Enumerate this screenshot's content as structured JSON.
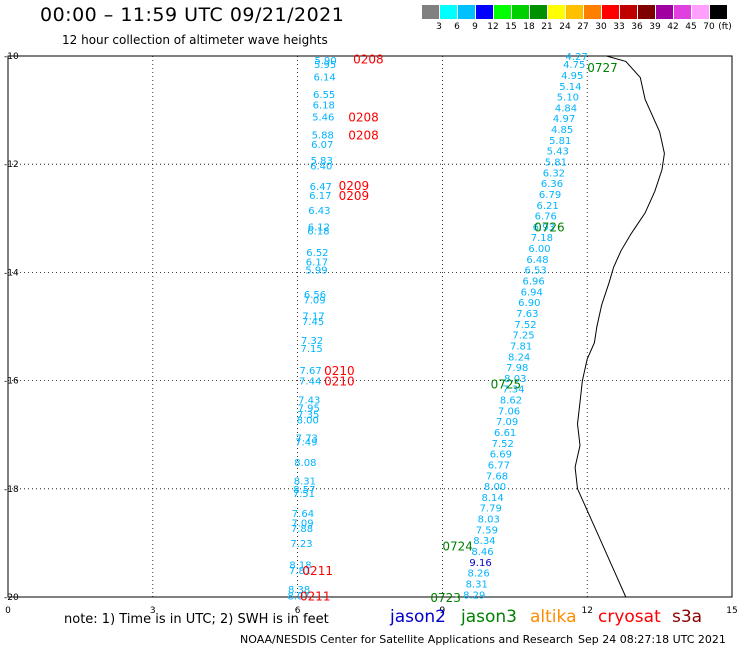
{
  "header": {
    "title": "00:00 – 11:59 UTC 09/21/2021",
    "subtitle": "12 hour collection of altimeter wave heights"
  },
  "legend": {
    "unit": "(ft)",
    "bins": [
      {
        "label": "3",
        "color": "#808080"
      },
      {
        "label": "6",
        "color": "#00ffff"
      },
      {
        "label": "9",
        "color": "#00c0ff"
      },
      {
        "label": "12",
        "color": "#0000ff"
      },
      {
        "label": "15",
        "color": "#00ff00"
      },
      {
        "label": "18",
        "color": "#00d000"
      },
      {
        "label": "21",
        "color": "#009000"
      },
      {
        "label": "24",
        "color": "#ffff00"
      },
      {
        "label": "27",
        "color": "#ffc000"
      },
      {
        "label": "30",
        "color": "#ff8000"
      },
      {
        "label": "33",
        "color": "#ff0000"
      },
      {
        "label": "36",
        "color": "#c00000"
      },
      {
        "label": "39",
        "color": "#800000"
      },
      {
        "label": "42",
        "color": "#a000a0"
      },
      {
        "label": "45",
        "color": "#e040e0"
      },
      {
        "label": "70",
        "color": "#ffa0ff"
      },
      {
        "label": "",
        "color": "#000000"
      }
    ]
  },
  "chart_data": {
    "type": "scatter",
    "x_ticks": [
      "0",
      "3",
      "6",
      "9",
      "12",
      "15"
    ],
    "y_ticks": [
      "-10",
      "-12",
      "-14",
      "-16",
      "-18",
      "-20"
    ],
    "xlim": [
      0,
      15
    ],
    "ylim": [
      -20,
      -10
    ],
    "grid": true,
    "colors": {
      "wave_label": "#00b4ff",
      "wave_label_high": "#0000cc",
      "cryosat": "#ff0000",
      "jason3": "#008000"
    },
    "tracks": [
      {
        "satellite": "cryosat",
        "points": [
          {
            "lon": 6.35,
            "lat": -10.07,
            "swh": "5.90"
          },
          {
            "lon": 6.34,
            "lat": -10.15,
            "swh": "5.95"
          },
          {
            "lon": 6.33,
            "lat": -10.38,
            "swh": "6.14"
          },
          {
            "lon": 6.32,
            "lat": -10.7,
            "swh": "6.55"
          },
          {
            "lon": 6.31,
            "lat": -10.9,
            "swh": "6.18"
          },
          {
            "lon": 6.3,
            "lat": -11.12,
            "swh": "5.46"
          },
          {
            "lon": 6.29,
            "lat": -11.45,
            "swh": "5.88"
          },
          {
            "lon": 6.28,
            "lat": -11.63,
            "swh": "6.07"
          },
          {
            "lon": 6.27,
            "lat": -11.92,
            "swh": "5.83"
          },
          {
            "lon": 6.26,
            "lat": -12.02,
            "swh": "6.40"
          },
          {
            "lon": 6.25,
            "lat": -12.4,
            "swh": "6.47"
          },
          {
            "lon": 6.24,
            "lat": -12.57,
            "swh": "6.17"
          },
          {
            "lon": 6.22,
            "lat": -12.85,
            "swh": "6.43"
          },
          {
            "lon": 6.21,
            "lat": -13.15,
            "swh": "6.12"
          },
          {
            "lon": 6.2,
            "lat": -13.23,
            "swh": "6.18"
          },
          {
            "lon": 6.18,
            "lat": -13.62,
            "swh": "6.52"
          },
          {
            "lon": 6.17,
            "lat": -13.8,
            "swh": "6.17"
          },
          {
            "lon": 6.16,
            "lat": -13.95,
            "swh": "5.99"
          },
          {
            "lon": 6.13,
            "lat": -14.4,
            "swh": "6.56"
          },
          {
            "lon": 6.12,
            "lat": -14.5,
            "swh": "7.09"
          },
          {
            "lon": 6.1,
            "lat": -14.8,
            "swh": "7.17"
          },
          {
            "lon": 6.09,
            "lat": -14.9,
            "swh": "7.45"
          },
          {
            "lon": 6.07,
            "lat": -15.25,
            "swh": "7.32"
          },
          {
            "lon": 6.06,
            "lat": -15.4,
            "swh": "7.15"
          },
          {
            "lon": 6.04,
            "lat": -15.8,
            "swh": "7.67"
          },
          {
            "lon": 6.03,
            "lat": -16.0,
            "swh": "7.44"
          },
          {
            "lon": 6.01,
            "lat": -16.35,
            "swh": "7.43"
          },
          {
            "lon": 6.0,
            "lat": -16.5,
            "swh": "7.95"
          },
          {
            "lon": 5.99,
            "lat": -16.62,
            "swh": "7.35"
          },
          {
            "lon": 5.98,
            "lat": -16.72,
            "swh": "8.00"
          },
          {
            "lon": 5.96,
            "lat": -17.05,
            "swh": "7.73"
          },
          {
            "lon": 5.95,
            "lat": -17.13,
            "swh": "7.49"
          },
          {
            "lon": 5.93,
            "lat": -17.5,
            "swh": "8.08"
          },
          {
            "lon": 5.92,
            "lat": -17.85,
            "swh": "8.31"
          },
          {
            "lon": 5.91,
            "lat": -18.0,
            "swh": "8.57"
          },
          {
            "lon": 5.9,
            "lat": -18.08,
            "swh": "7.51"
          },
          {
            "lon": 5.88,
            "lat": -18.45,
            "swh": "7.64"
          },
          {
            "lon": 5.87,
            "lat": -18.62,
            "swh": "7.09"
          },
          {
            "lon": 5.86,
            "lat": -18.72,
            "swh": "7.88"
          },
          {
            "lon": 5.85,
            "lat": -19.0,
            "swh": "7.23"
          },
          {
            "lon": 5.83,
            "lat": -19.4,
            "swh": "8.18"
          },
          {
            "lon": 5.82,
            "lat": -19.5,
            "swh": "7.81"
          },
          {
            "lon": 5.8,
            "lat": -19.85,
            "swh": "8.38"
          },
          {
            "lon": 5.79,
            "lat": -19.97,
            "swh": "8.07"
          }
        ],
        "times": [
          {
            "lon": 7.15,
            "lat": -10.05,
            "label": "0208"
          },
          {
            "lon": 7.05,
            "lat": -11.12,
            "label": "0208"
          },
          {
            "lon": 7.05,
            "lat": -11.45,
            "label": "0208"
          },
          {
            "lon": 6.85,
            "lat": -12.38,
            "label": "0209"
          },
          {
            "lon": 6.85,
            "lat": -12.57,
            "label": "0209"
          },
          {
            "lon": 6.55,
            "lat": -15.8,
            "label": "0210"
          },
          {
            "lon": 6.55,
            "lat": -16.0,
            "label": "0210"
          },
          {
            "lon": 6.1,
            "lat": -19.5,
            "label": "0211"
          },
          {
            "lon": 6.05,
            "lat": -19.97,
            "label": "0211"
          }
        ]
      },
      {
        "satellite": "jason3",
        "points": [
          {
            "lon": 11.55,
            "lat": -10.0,
            "swh": "4.27"
          },
          {
            "lon": 11.5,
            "lat": -10.15,
            "swh": "4.75"
          },
          {
            "lon": 11.46,
            "lat": -10.35,
            "swh": "4.95"
          },
          {
            "lon": 11.42,
            "lat": -10.55,
            "swh": "5.14"
          },
          {
            "lon": 11.37,
            "lat": -10.75,
            "swh": "5.10"
          },
          {
            "lon": 11.33,
            "lat": -10.95,
            "swh": "4.84"
          },
          {
            "lon": 11.29,
            "lat": -11.15,
            "swh": "4.97"
          },
          {
            "lon": 11.25,
            "lat": -11.35,
            "swh": "4.85"
          },
          {
            "lon": 11.21,
            "lat": -11.55,
            "swh": "5.81"
          },
          {
            "lon": 11.16,
            "lat": -11.75,
            "swh": "5.43"
          },
          {
            "lon": 11.12,
            "lat": -11.95,
            "swh": "5.81"
          },
          {
            "lon": 11.08,
            "lat": -12.15,
            "swh": "6.32"
          },
          {
            "lon": 11.04,
            "lat": -12.35,
            "swh": "6.36"
          },
          {
            "lon": 11.0,
            "lat": -12.55,
            "swh": "6.79"
          },
          {
            "lon": 10.95,
            "lat": -12.75,
            "swh": "6.21"
          },
          {
            "lon": 10.91,
            "lat": -12.95,
            "swh": "6.76"
          },
          {
            "lon": 10.87,
            "lat": -13.15,
            "swh": "6.93"
          },
          {
            "lon": 10.83,
            "lat": -13.35,
            "swh": "7.18"
          },
          {
            "lon": 10.78,
            "lat": -13.55,
            "swh": "6.00"
          },
          {
            "lon": 10.74,
            "lat": -13.75,
            "swh": "6.48"
          },
          {
            "lon": 10.7,
            "lat": -13.95,
            "swh": "6.53"
          },
          {
            "lon": 10.66,
            "lat": -14.15,
            "swh": "6.96"
          },
          {
            "lon": 10.62,
            "lat": -14.35,
            "swh": "6.94"
          },
          {
            "lon": 10.57,
            "lat": -14.55,
            "swh": "6.90"
          },
          {
            "lon": 10.53,
            "lat": -14.75,
            "swh": "7.63"
          },
          {
            "lon": 10.49,
            "lat": -14.95,
            "swh": "7.52"
          },
          {
            "lon": 10.45,
            "lat": -15.15,
            "swh": "7.25"
          },
          {
            "lon": 10.4,
            "lat": -15.35,
            "swh": "7.81"
          },
          {
            "lon": 10.36,
            "lat": -15.55,
            "swh": "8.24"
          },
          {
            "lon": 10.32,
            "lat": -15.75,
            "swh": "7.98"
          },
          {
            "lon": 10.28,
            "lat": -15.95,
            "swh": "8.03"
          },
          {
            "lon": 10.24,
            "lat": -16.15,
            "swh": "7.34"
          },
          {
            "lon": 10.19,
            "lat": -16.35,
            "swh": "8.62"
          },
          {
            "lon": 10.15,
            "lat": -16.55,
            "swh": "7.06"
          },
          {
            "lon": 10.11,
            "lat": -16.75,
            "swh": "7.09"
          },
          {
            "lon": 10.07,
            "lat": -16.95,
            "swh": "6.61"
          },
          {
            "lon": 10.02,
            "lat": -17.15,
            "swh": "7.52"
          },
          {
            "lon": 9.98,
            "lat": -17.35,
            "swh": "6.69"
          },
          {
            "lon": 9.94,
            "lat": -17.55,
            "swh": "6.77"
          },
          {
            "lon": 9.9,
            "lat": -17.75,
            "swh": "7.68"
          },
          {
            "lon": 9.86,
            "lat": -17.95,
            "swh": "8.00"
          },
          {
            "lon": 9.81,
            "lat": -18.15,
            "swh": "8.14"
          },
          {
            "lon": 9.77,
            "lat": -18.35,
            "swh": "7.79"
          },
          {
            "lon": 9.73,
            "lat": -18.55,
            "swh": "8.03"
          },
          {
            "lon": 9.69,
            "lat": -18.75,
            "swh": "7.59"
          },
          {
            "lon": 9.64,
            "lat": -18.95,
            "swh": "8.34"
          },
          {
            "lon": 9.6,
            "lat": -19.15,
            "swh": "8.46"
          },
          {
            "lon": 9.56,
            "lat": -19.35,
            "swh": "9.16"
          },
          {
            "lon": 9.52,
            "lat": -19.55,
            "swh": "8.26"
          },
          {
            "lon": 9.48,
            "lat": -19.75,
            "swh": "8.31"
          },
          {
            "lon": 9.43,
            "lat": -19.95,
            "swh": "8.29"
          }
        ],
        "times": [
          {
            "lon": 12.0,
            "lat": -10.2,
            "label": "0727"
          },
          {
            "lon": 10.9,
            "lat": -13.15,
            "label": "0726"
          },
          {
            "lon": 10.0,
            "lat": -16.05,
            "label": "0725"
          },
          {
            "lon": 9.0,
            "lat": -19.05,
            "label": "0724"
          },
          {
            "lon": 8.75,
            "lat": -20.0,
            "label": "0723"
          }
        ]
      }
    ],
    "coastline": [
      [
        12.4,
        -10.0
      ],
      [
        12.8,
        -10.1
      ],
      [
        13.1,
        -10.4
      ],
      [
        13.2,
        -10.8
      ],
      [
        13.3,
        -11.0
      ],
      [
        13.5,
        -11.4
      ],
      [
        13.6,
        -11.8
      ],
      [
        13.55,
        -12.1
      ],
      [
        13.4,
        -12.5
      ],
      [
        13.2,
        -12.9
      ],
      [
        12.9,
        -13.3
      ],
      [
        12.7,
        -13.6
      ],
      [
        12.55,
        -13.9
      ],
      [
        12.45,
        -14.2
      ],
      [
        12.3,
        -14.6
      ],
      [
        12.2,
        -15.0
      ],
      [
        12.15,
        -15.3
      ],
      [
        12.0,
        -15.6
      ],
      [
        11.9,
        -16.0
      ],
      [
        11.85,
        -16.4
      ],
      [
        11.8,
        -16.8
      ],
      [
        11.85,
        -17.2
      ],
      [
        11.75,
        -17.6
      ],
      [
        11.8,
        -18.0
      ],
      [
        12.0,
        -18.4
      ],
      [
        12.2,
        -18.8
      ],
      [
        12.4,
        -19.2
      ],
      [
        12.6,
        -19.6
      ],
      [
        12.8,
        -20.0
      ]
    ]
  },
  "footer": {
    "note": "note: 1) Time is in UTC; 2) SWH is in feet",
    "satellites": [
      {
        "label": "jason2",
        "color": "#0000cc"
      },
      {
        "label": "jason3",
        "color": "#008000"
      },
      {
        "label": "altika",
        "color": "#ff8c00"
      },
      {
        "label": "cryosat",
        "color": "#ff0000"
      },
      {
        "label": "s3a",
        "color": "#8b0000"
      }
    ],
    "credit": "NOAA/NESDIS Center for Satellite Applications and Research",
    "timestamp": "Sep 24 08:27:18 UTC 2021"
  }
}
